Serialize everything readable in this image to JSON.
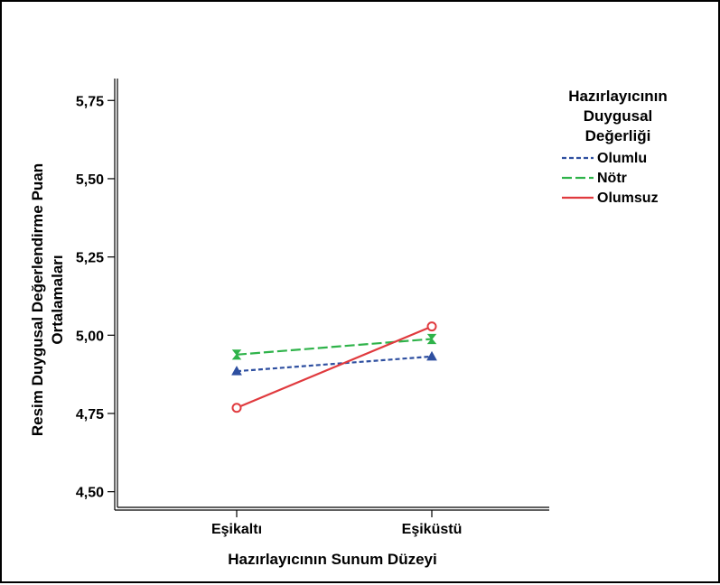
{
  "chart_data": {
    "type": "line",
    "title": "",
    "xlabel": "Hazırlayıcının Sunum Düzeyi",
    "ylabel_line1": "Resim Duygusal Değerlendirme Puan",
    "ylabel_line2": "Ortalamaları",
    "categories": [
      "Eşikaltı",
      "Eşiküstü"
    ],
    "ylim": [
      4.45,
      5.82
    ],
    "yticks": [
      4.5,
      4.75,
      5.0,
      5.25,
      5.5,
      5.75
    ],
    "ytick_labels": [
      "4,50",
      "4,75",
      "5,00",
      "5,25",
      "5,50",
      "5,75"
    ],
    "grid": false,
    "legend": {
      "title_lines": [
        "Hazırlayıcının",
        "Duygusal",
        "Değerliği"
      ],
      "placement": "right"
    },
    "series": [
      {
        "name": "Olumlu",
        "values": [
          4.885,
          4.932
        ],
        "color": "#2e4fa0",
        "dash": "short-dash",
        "marker": "triangle"
      },
      {
        "name": "Nötr",
        "values": [
          4.938,
          4.988
        ],
        "color": "#2fb34a",
        "dash": "long-dash",
        "marker": "hourglass"
      },
      {
        "name": "Olumsuz",
        "values": [
          4.768,
          5.028
        ],
        "color": "#e03a3e",
        "dash": "solid",
        "marker": "circle"
      }
    ]
  }
}
